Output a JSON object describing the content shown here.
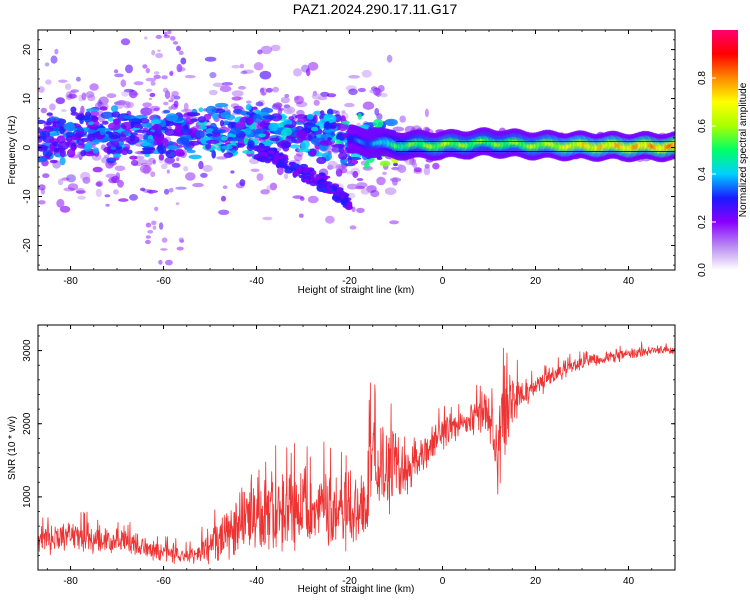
{
  "figure": {
    "title": "PAZ1.2024.290.17.11.G17"
  },
  "chart_data": [
    {
      "type": "heatmap",
      "xlabel": "Height of straight line (km)",
      "ylabel": "Frequency (Hz)",
      "xlim": [
        -87,
        50
      ],
      "ylim": [
        -25,
        24
      ],
      "xticks": [
        -80,
        -60,
        -40,
        -20,
        0,
        20,
        40
      ],
      "yticks": [
        -20,
        -10,
        0,
        10,
        20
      ],
      "colorbar": {
        "label": "Normalized spectral amplitude",
        "range": [
          0,
          1
        ],
        "ticks": [
          0.0,
          0.2,
          0.4,
          0.6,
          0.8
        ],
        "tick_labels": [
          "0.0",
          "0.2",
          "0.4",
          "0.6",
          "0.8"
        ],
        "colors": [
          "#ffffff",
          "#b98af2",
          "#8a00ff",
          "#1a1aff",
          "#00d0ff",
          "#00ff66",
          "#a8ff00",
          "#ffff00",
          "#ff8a00",
          "#ff0000",
          "#ff0070"
        ]
      },
      "ridge": {
        "comment_free": true,
        "x": [
          -87,
          -80,
          -70,
          -60,
          -50,
          -40,
          -30,
          -20,
          -15,
          -10,
          0,
          10,
          20,
          30,
          40,
          50
        ],
        "center_freq": [
          2.5,
          2.5,
          3,
          2.5,
          3,
          3.5,
          3,
          1.5,
          1,
          0.5,
          0.5,
          1,
          0.5,
          0.3,
          0.2,
          0.2
        ],
        "amplitude": [
          0.2,
          0.25,
          0.25,
          0.25,
          0.3,
          0.3,
          0.3,
          0.35,
          0.4,
          0.55,
          0.65,
          0.6,
          0.65,
          0.75,
          0.8,
          0.85
        ]
      },
      "descending_branch": {
        "x": [
          -40,
          -35,
          -30,
          -25,
          -20
        ],
        "freq": [
          -0.5,
          -2.5,
          -5,
          -7.5,
          -11.5
        ],
        "amplitude": [
          0.3,
          0.3,
          0.3,
          0.3,
          0.3
        ]
      }
    },
    {
      "type": "line",
      "xlabel": "Height of straight line (km)",
      "ylabel": "SNR (10 * v/v)",
      "xlim": [
        -87,
        50
      ],
      "ylim": [
        0,
        3350
      ],
      "xticks": [
        -80,
        -60,
        -40,
        -20,
        0,
        20,
        40
      ],
      "yticks": [
        1000,
        2000,
        3000
      ],
      "color": "#ee3333",
      "envelope": {
        "x": [
          -87,
          -80,
          -70,
          -60,
          -55,
          -50,
          -45,
          -40,
          -35,
          -30,
          -25,
          -20,
          -16,
          -15,
          -12,
          -10,
          -9,
          -5,
          0,
          5,
          10,
          12,
          13,
          15,
          20,
          25,
          30,
          35,
          40,
          45,
          50
        ],
        "mean": [
          420,
          450,
          400,
          230,
          200,
          300,
          600,
          750,
          820,
          850,
          800,
          720,
          1000,
          1700,
          1300,
          1500,
          1200,
          1550,
          1900,
          2000,
          2150,
          1500,
          2100,
          2350,
          2500,
          2700,
          2850,
          2900,
          2950,
          3000,
          3000
        ],
        "spread": [
          180,
          200,
          170,
          120,
          110,
          200,
          420,
          500,
          520,
          500,
          480,
          450,
          550,
          700,
          550,
          550,
          300,
          250,
          220,
          200,
          300,
          500,
          700,
          300,
          150,
          110,
          90,
          80,
          80,
          70,
          70
        ]
      }
    }
  ]
}
